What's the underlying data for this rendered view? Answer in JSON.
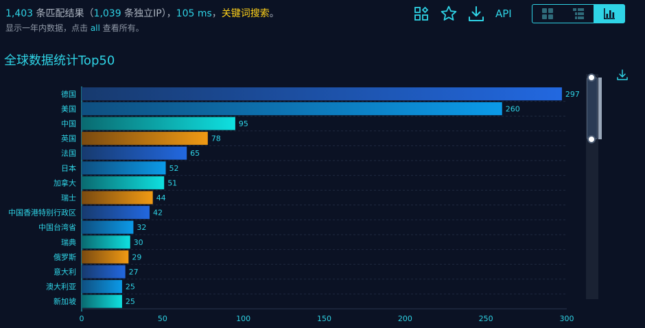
{
  "header": {
    "count": "1,403",
    "t1": " 条匹配结果（",
    "unique_ip": "1,039",
    "t2": " 条独立IP），",
    "ms": "105 ms",
    "t3": "，",
    "keyword": "关键词搜索",
    "t4": "。",
    "sub_a": "显示一年内数据，点击 ",
    "sub_link": "all",
    "sub_b": " 查看所有。"
  },
  "toolbar": {
    "icons": [
      "grid-settings-icon",
      "star-icon",
      "download-icon"
    ],
    "api_label": "API",
    "views": [
      "tile-view-icon",
      "list-view-icon",
      "chart-view-icon"
    ],
    "active_view": 2
  },
  "colors": {
    "accent": "#2fd4e6",
    "keyword": "#ffd11a",
    "bar_palette": [
      [
        "#173a6e",
        "#2268e0"
      ],
      [
        "#0f4f80",
        "#0b9ae8"
      ],
      [
        "#0a6a70",
        "#0fe0e0"
      ],
      [
        "#7a4a10",
        "#f09a14"
      ]
    ]
  },
  "chart_data": {
    "type": "bar",
    "orientation": "horizontal",
    "title": "全球数据统计Top50",
    "categories": [
      "德国",
      "美国",
      "中国",
      "英国",
      "法国",
      "日本",
      "加拿大",
      "瑞士",
      "中国香港特别行政区",
      "中国台湾省",
      "瑞典",
      "俄罗斯",
      "意大利",
      "澳大利亚",
      "新加坡"
    ],
    "values": [
      297,
      260,
      95,
      78,
      65,
      52,
      51,
      44,
      42,
      32,
      30,
      29,
      27,
      25,
      25
    ],
    "xlim": [
      0,
      300
    ],
    "xticks": [
      0,
      50,
      100,
      150,
      200,
      250,
      300
    ],
    "data_labels": true,
    "grid": "horizontal dashed",
    "data_zoom": "vertical slider"
  }
}
